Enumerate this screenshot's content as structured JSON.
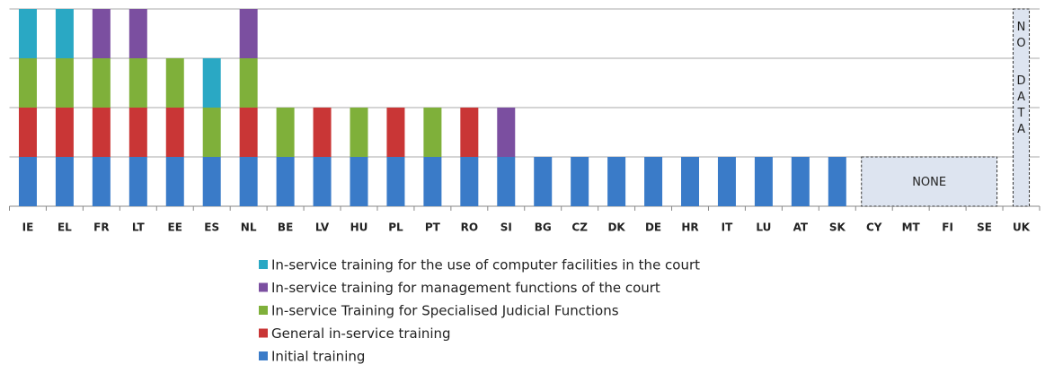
{
  "chart_data": {
    "type": "stacked_bar",
    "categories": [
      "IE",
      "EL",
      "FR",
      "LT",
      "EE",
      "ES",
      "NL",
      "BE",
      "LV",
      "HU",
      "PL",
      "PT",
      "RO",
      "SI",
      "BG",
      "CZ",
      "DK",
      "DE",
      "HR",
      "IT",
      "LU",
      "AT",
      "SK",
      "CY",
      "MT",
      "FI",
      "SE",
      "UK"
    ],
    "series": [
      {
        "name": "Initial training",
        "color": "#3a7bc8",
        "values": [
          1,
          1,
          1,
          1,
          1,
          1,
          1,
          1,
          1,
          1,
          1,
          1,
          1,
          1,
          1,
          1,
          1,
          1,
          1,
          1,
          1,
          1,
          1,
          0,
          0,
          0,
          0,
          null
        ]
      },
      {
        "name": "General in-service training",
        "color": "#c93636",
        "values": [
          1,
          1,
          1,
          1,
          1,
          0,
          1,
          0,
          1,
          0,
          1,
          0,
          1,
          0,
          0,
          0,
          0,
          0,
          0,
          0,
          0,
          0,
          0,
          0,
          0,
          0,
          0,
          null
        ]
      },
      {
        "name": "In-service Training for Specialised Judicial Functions",
        "color": "#7fb03a",
        "values": [
          1,
          1,
          1,
          1,
          1,
          1,
          1,
          1,
          0,
          1,
          0,
          1,
          0,
          0,
          0,
          0,
          0,
          0,
          0,
          0,
          0,
          0,
          0,
          0,
          0,
          0,
          0,
          null
        ]
      },
      {
        "name": "In-service training for management functions of the court",
        "color": "#7b4fa0",
        "values": [
          0,
          0,
          1,
          1,
          0,
          0,
          1,
          0,
          0,
          0,
          0,
          0,
          0,
          1,
          0,
          0,
          0,
          0,
          0,
          0,
          0,
          0,
          0,
          0,
          0,
          0,
          0,
          null
        ]
      },
      {
        "name": "In-service training for the use of computer facilities in the court",
        "color": "#2aa8c4",
        "values": [
          1,
          1,
          0,
          0,
          0,
          1,
          0,
          0,
          0,
          0,
          0,
          0,
          0,
          0,
          0,
          0,
          0,
          0,
          0,
          0,
          0,
          0,
          0,
          0,
          0,
          0,
          0,
          null
        ]
      }
    ],
    "ylim": [
      0,
      4
    ],
    "yticks": [
      0,
      1,
      2,
      3,
      4
    ],
    "grid": true,
    "annotations": {
      "none": "NONE",
      "no_data": "NO DATA"
    }
  }
}
